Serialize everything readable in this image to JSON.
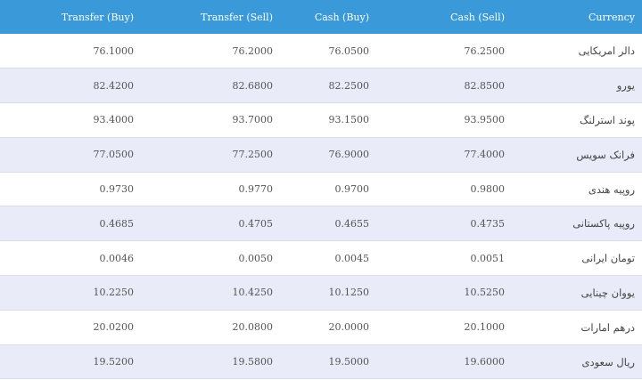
{
  "table": {
    "headers": {
      "transfer_buy": "Transfer (Buy)",
      "transfer_sell": "Transfer (Sell)",
      "cash_buy": "Cash (Buy)",
      "cash_sell": "Cash (Sell)",
      "currency": "Currency"
    },
    "rows": [
      {
        "transfer_buy": "76.1000",
        "transfer_sell": "76.2000",
        "cash_buy": "76.0500",
        "cash_sell": "76.2500",
        "currency": "دالر امریکایی"
      },
      {
        "transfer_buy": "82.4200",
        "transfer_sell": "82.6800",
        "cash_buy": "82.2500",
        "cash_sell": "82.8500",
        "currency": "یورو"
      },
      {
        "transfer_buy": "93.4000",
        "transfer_sell": "93.7000",
        "cash_buy": "93.1500",
        "cash_sell": "93.9500",
        "currency": "پوند استرلنگ"
      },
      {
        "transfer_buy": "77.0500",
        "transfer_sell": "77.2500",
        "cash_buy": "76.9000",
        "cash_sell": "77.4000",
        "currency": "فرانک سویس"
      },
      {
        "transfer_buy": "0.9730",
        "transfer_sell": "0.9770",
        "cash_buy": "0.9700",
        "cash_sell": "0.9800",
        "currency": "روپیه هندی"
      },
      {
        "transfer_buy": "0.4685",
        "transfer_sell": "0.4705",
        "cash_buy": "0.4655",
        "cash_sell": "0.4735",
        "currency": "روپیه پاکستانی"
      },
      {
        "transfer_buy": "0.0046",
        "transfer_sell": "0.0050",
        "cash_buy": "0.0045",
        "cash_sell": "0.0051",
        "currency": "تومان ایرانی"
      },
      {
        "transfer_buy": "10.2250",
        "transfer_sell": "10.4250",
        "cash_buy": "10.1250",
        "cash_sell": "10.5250",
        "currency": "یووان چینایی"
      },
      {
        "transfer_buy": "20.0200",
        "transfer_sell": "20.0800",
        "cash_buy": "20.0000",
        "cash_sell": "20.1000",
        "currency": "درهم امارات"
      },
      {
        "transfer_buy": "19.5200",
        "transfer_sell": "19.5800",
        "cash_buy": "19.5000",
        "cash_sell": "19.6000",
        "currency": "ریال سعودی"
      }
    ]
  },
  "colors": {
    "header_bg": "#3a9ad9",
    "row_alt_bg": "#e9ebf8"
  }
}
